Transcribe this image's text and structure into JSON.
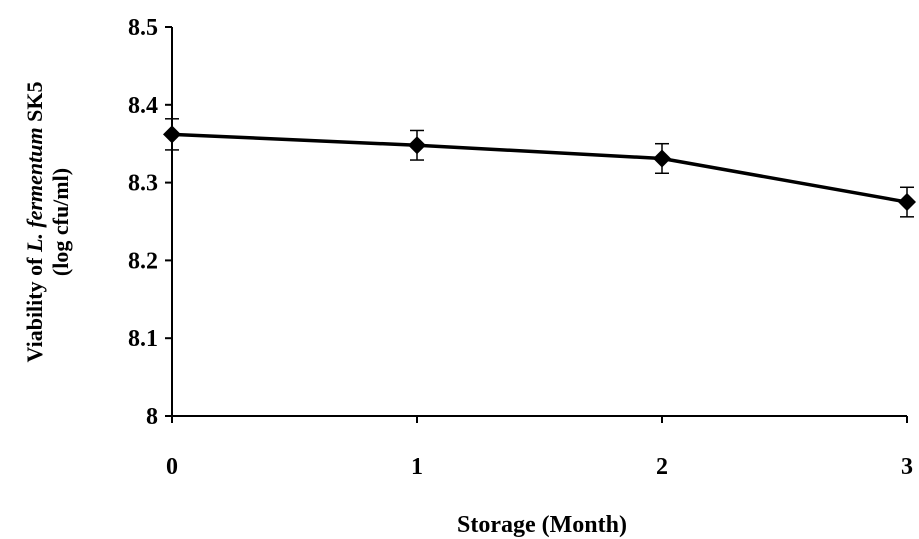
{
  "chart_data": {
    "type": "line",
    "x": [
      0,
      1,
      2,
      3
    ],
    "series": [
      {
        "values": [
          8.362,
          8.348,
          8.331,
          8.275
        ],
        "error": [
          0.02,
          0.019,
          0.019,
          0.019
        ]
      }
    ],
    "xticks": [
      "0",
      "1",
      "2",
      "3"
    ],
    "yticks": [
      "8",
      "8.1",
      "8.2",
      "8.3",
      "8.4",
      "8.5"
    ],
    "xlim": [
      0,
      3
    ],
    "ylim": [
      8,
      8.5
    ],
    "xlabel": "Storage (Month)",
    "ylabel": {
      "prefix": "Viability of ",
      "italic": "L. fermentum",
      "suffix": " SK5",
      "line2": "(log cfu/ml)"
    },
    "grid": false,
    "line_color": "#000000",
    "marker": "diamond"
  }
}
